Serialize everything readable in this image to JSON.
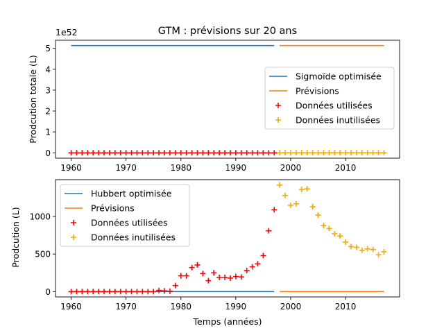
{
  "chart_data": [
    {
      "type": "line",
      "title": "GTM : prévisions sur 20 ans",
      "xlabel": "",
      "ylabel": "Prodcution totale (L)",
      "offset_text": "1e52",
      "xlim": [
        1957.15,
        2019.85
      ],
      "ylim": [
        -0.2565,
        5.3865
      ],
      "xticks": [
        1960,
        1970,
        1980,
        1990,
        2000,
        2010
      ],
      "xtick_labels": [
        "1960",
        "1970",
        "1980",
        "1990",
        "2000",
        "2010"
      ],
      "yticks": [
        0,
        1,
        2,
        3,
        4,
        5
      ],
      "ytick_labels": [
        "0",
        "1",
        "2",
        "3",
        "4",
        "5"
      ],
      "legend_position": "center-right",
      "series": [
        {
          "name": "Sigmoïde optimisée",
          "kind": "line",
          "color": "#1f77b4",
          "x": [
            1960,
            1997
          ],
          "y": [
            5.13,
            5.13
          ]
        },
        {
          "name": "Prévisions",
          "kind": "line",
          "color": "#ff7f0e",
          "x": [
            1998,
            2017
          ],
          "y": [
            5.13,
            5.13
          ]
        },
        {
          "name": "Données utilisées",
          "kind": "scatter",
          "marker": "+",
          "color": "#ff0000",
          "x": [
            1960,
            1961,
            1962,
            1963,
            1964,
            1965,
            1966,
            1967,
            1968,
            1969,
            1970,
            1971,
            1972,
            1973,
            1974,
            1975,
            1976,
            1977,
            1978,
            1979,
            1980,
            1981,
            1982,
            1983,
            1984,
            1985,
            1986,
            1987,
            1988,
            1989,
            1990,
            1991,
            1992,
            1993,
            1994,
            1995,
            1996,
            1997
          ],
          "y": [
            0,
            0,
            0,
            0,
            0,
            0,
            0,
            0,
            0,
            0,
            0,
            0,
            0,
            0,
            0,
            0,
            0,
            0,
            0,
            0,
            0,
            0,
            0,
            0,
            0,
            0,
            0,
            0,
            0,
            0,
            0,
            0,
            0,
            0,
            0,
            0,
            0,
            0
          ]
        },
        {
          "name": "Données inutilisées",
          "kind": "scatter",
          "marker": "+",
          "color": "#ffa500",
          "x": [
            1998,
            1999,
            2000,
            2001,
            2002,
            2003,
            2004,
            2005,
            2006,
            2007,
            2008,
            2009,
            2010,
            2011,
            2012,
            2013,
            2014,
            2015,
            2016,
            2017
          ],
          "y": [
            0,
            0,
            0,
            0,
            0,
            0,
            0,
            0,
            0,
            0,
            0,
            0,
            0,
            0,
            0,
            0,
            0,
            0,
            0,
            0
          ]
        }
      ]
    },
    {
      "type": "line",
      "title": "",
      "xlabel": "Temps (années)",
      "ylabel": "Prodcution (L)",
      "offset_text": "",
      "xlim": [
        1957.15,
        2019.85
      ],
      "ylim": [
        -71,
        1491
      ],
      "xticks": [
        1960,
        1970,
        1980,
        1990,
        2000,
        2010
      ],
      "xtick_labels": [
        "1960",
        "1970",
        "1980",
        "1990",
        "2000",
        "2010"
      ],
      "yticks": [
        0,
        500,
        1000
      ],
      "ytick_labels": [
        "0",
        "500",
        "1000"
      ],
      "legend_position": "upper-left",
      "series": [
        {
          "name": "Hubbert optimisée",
          "kind": "line",
          "color": "#1f77b4",
          "x": [
            1960,
            1997
          ],
          "y": [
            0,
            0
          ]
        },
        {
          "name": "Prévisions",
          "kind": "line",
          "color": "#ff7f0e",
          "x": [
            1998,
            2017
          ],
          "y": [
            0,
            0
          ]
        },
        {
          "name": "Données utilisées",
          "kind": "scatter",
          "marker": "+",
          "color": "#ff0000",
          "x": [
            1960,
            1961,
            1962,
            1963,
            1964,
            1965,
            1966,
            1967,
            1968,
            1969,
            1970,
            1971,
            1972,
            1973,
            1974,
            1975,
            1976,
            1977,
            1978,
            1979,
            1980,
            1981,
            1982,
            1983,
            1984,
            1985,
            1986,
            1987,
            1988,
            1989,
            1990,
            1991,
            1992,
            1993,
            1994,
            1995,
            1996,
            1997
          ],
          "y": [
            0,
            0,
            0,
            0,
            0,
            0,
            0,
            0,
            0,
            0,
            0,
            0,
            0,
            0,
            0,
            0,
            15,
            10,
            5,
            80,
            210,
            210,
            320,
            355,
            240,
            145,
            250,
            190,
            190,
            180,
            200,
            195,
            280,
            330,
            370,
            480,
            810,
            1090
          ]
        },
        {
          "name": "Données inutilisées",
          "kind": "scatter",
          "marker": "+",
          "color": "#ffa500",
          "x": [
            1998,
            1999,
            2000,
            2001,
            2002,
            2003,
            2004,
            2005,
            2006,
            2007,
            2008,
            2009,
            2010,
            2011,
            2012,
            2013,
            2014,
            2015,
            2016,
            2017
          ],
          "y": [
            1420,
            1280,
            1150,
            1170,
            1360,
            1370,
            1130,
            1020,
            880,
            840,
            770,
            740,
            660,
            600,
            590,
            550,
            570,
            560,
            490,
            530
          ]
        }
      ]
    }
  ]
}
